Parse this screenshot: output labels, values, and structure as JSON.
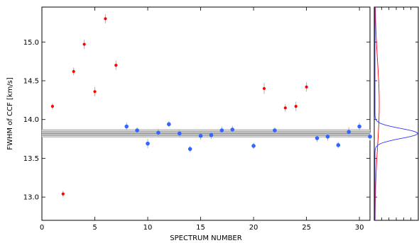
{
  "chart_data": {
    "type": "scatter",
    "xlabel": "SPECTRUM NUMBER",
    "ylabel": "FWHM of CCF [km/s]",
    "xlim": [
      0,
      31
    ],
    "ylim": [
      12.7,
      15.45
    ],
    "xticks": [
      "0",
      "5",
      "10",
      "15",
      "20",
      "25",
      "30"
    ],
    "yticks": [
      "13.0",
      "13.5",
      "14.0",
      "14.5",
      "15.0"
    ],
    "grid": false,
    "band": {
      "center": 13.82,
      "inner": [
        13.79,
        13.85
      ],
      "outer": [
        13.77,
        13.87
      ]
    },
    "series": [
      {
        "color": "#ff0000",
        "points": [
          {
            "x": 1,
            "y": 14.17,
            "err": 0.04
          },
          {
            "x": 2,
            "y": 13.04,
            "err": 0.04
          },
          {
            "x": 3,
            "y": 14.62,
            "err": 0.05
          },
          {
            "x": 4,
            "y": 14.97,
            "err": 0.06
          },
          {
            "x": 5,
            "y": 14.36,
            "err": 0.06
          },
          {
            "x": 6,
            "y": 15.3,
            "err": 0.06
          },
          {
            "x": 7,
            "y": 14.7,
            "err": 0.06
          },
          {
            "x": 21,
            "y": 14.4,
            "err": 0.07
          },
          {
            "x": 23,
            "y": 14.15,
            "err": 0.05
          },
          {
            "x": 24,
            "y": 14.17,
            "err": 0.06
          },
          {
            "x": 25,
            "y": 14.42,
            "err": 0.06
          }
        ]
      },
      {
        "color": "#3366ff",
        "points": [
          {
            "x": 8,
            "y": 13.91,
            "err": 0.05
          },
          {
            "x": 9,
            "y": 13.86,
            "err": 0.04
          },
          {
            "x": 10,
            "y": 13.69,
            "err": 0.06
          },
          {
            "x": 11,
            "y": 13.83,
            "err": 0.05
          },
          {
            "x": 12,
            "y": 13.94,
            "err": 0.04
          },
          {
            "x": 13,
            "y": 13.82,
            "err": 0.05
          },
          {
            "x": 14,
            "y": 13.62,
            "err": 0.04
          },
          {
            "x": 15,
            "y": 13.79,
            "err": 0.05
          },
          {
            "x": 16,
            "y": 13.8,
            "err": 0.05
          },
          {
            "x": 17,
            "y": 13.86,
            "err": 0.05
          },
          {
            "x": 18,
            "y": 13.87,
            "err": 0.05
          },
          {
            "x": 20,
            "y": 13.66,
            "err": 0.04
          },
          {
            "x": 22,
            "y": 13.86,
            "err": 0.04
          },
          {
            "x": 26,
            "y": 13.76,
            "err": 0.05
          },
          {
            "x": 27,
            "y": 13.78,
            "err": 0.05
          },
          {
            "x": 28,
            "y": 13.67,
            "err": 0.04
          },
          {
            "x": 29,
            "y": 13.84,
            "err": 0.06
          },
          {
            "x": 30,
            "y": 13.91,
            "err": 0.05
          },
          {
            "x": 31,
            "y": 13.78,
            "err": 0.05
          }
        ]
      }
    ],
    "side_panel": {
      "type": "distribution",
      "curves": [
        {
          "color": "#ff0000",
          "kind": "broad",
          "center": 14.2,
          "sigma": 0.55,
          "amplitude": 0.1
        },
        {
          "color": "#3333ff",
          "kind": "narrow",
          "center": 13.82,
          "sigma": 0.065,
          "amplitude": 1.0
        }
      ]
    }
  }
}
